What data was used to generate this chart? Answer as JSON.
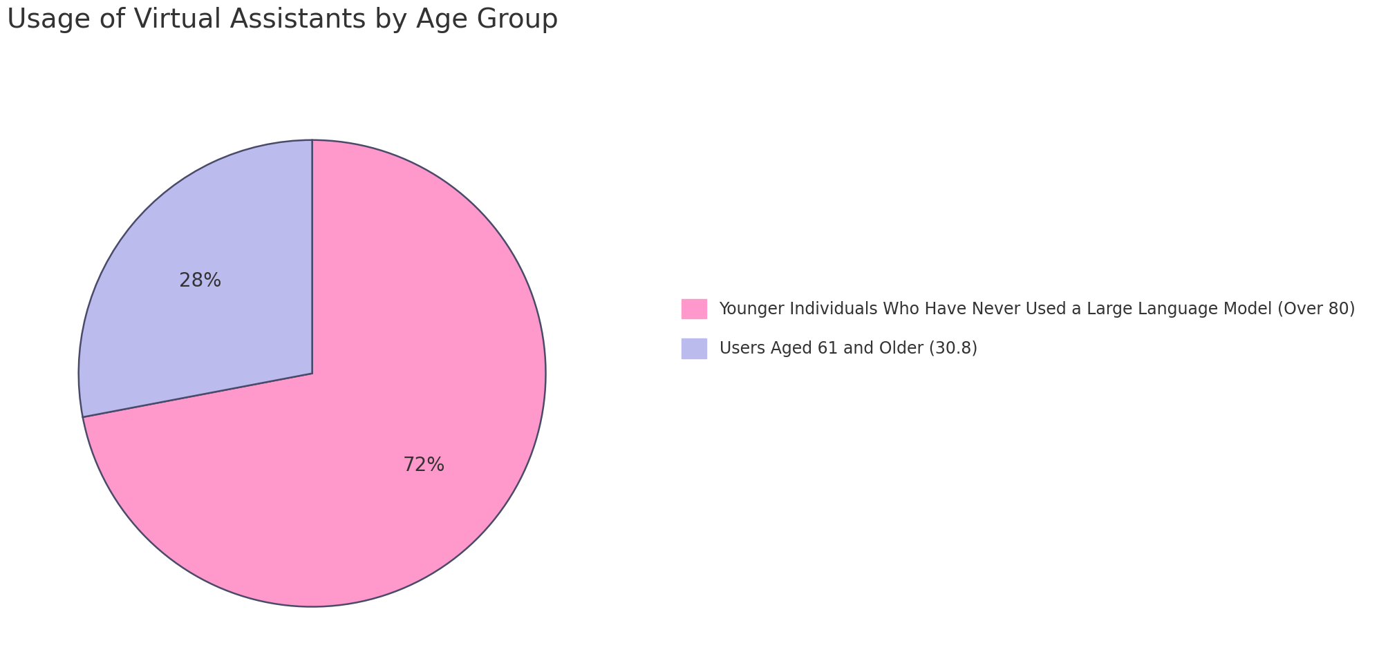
{
  "title": "Usage of Virtual Assistants by Age Group",
  "slices": [
    72,
    28
  ],
  "labels": [
    "Younger Individuals Who Have Never Used a Large Language Model (Over 80)",
    "Users Aged 61 and Older (30.8)"
  ],
  "colors": [
    "#FF99CC",
    "#BBBBEE"
  ],
  "edge_color": "#4a4a6a",
  "background_color": "#FFFFFF",
  "title_fontsize": 28,
  "title_color": "#333333",
  "legend_fontsize": 17,
  "startangle": 90,
  "pct_fontsize": 20
}
